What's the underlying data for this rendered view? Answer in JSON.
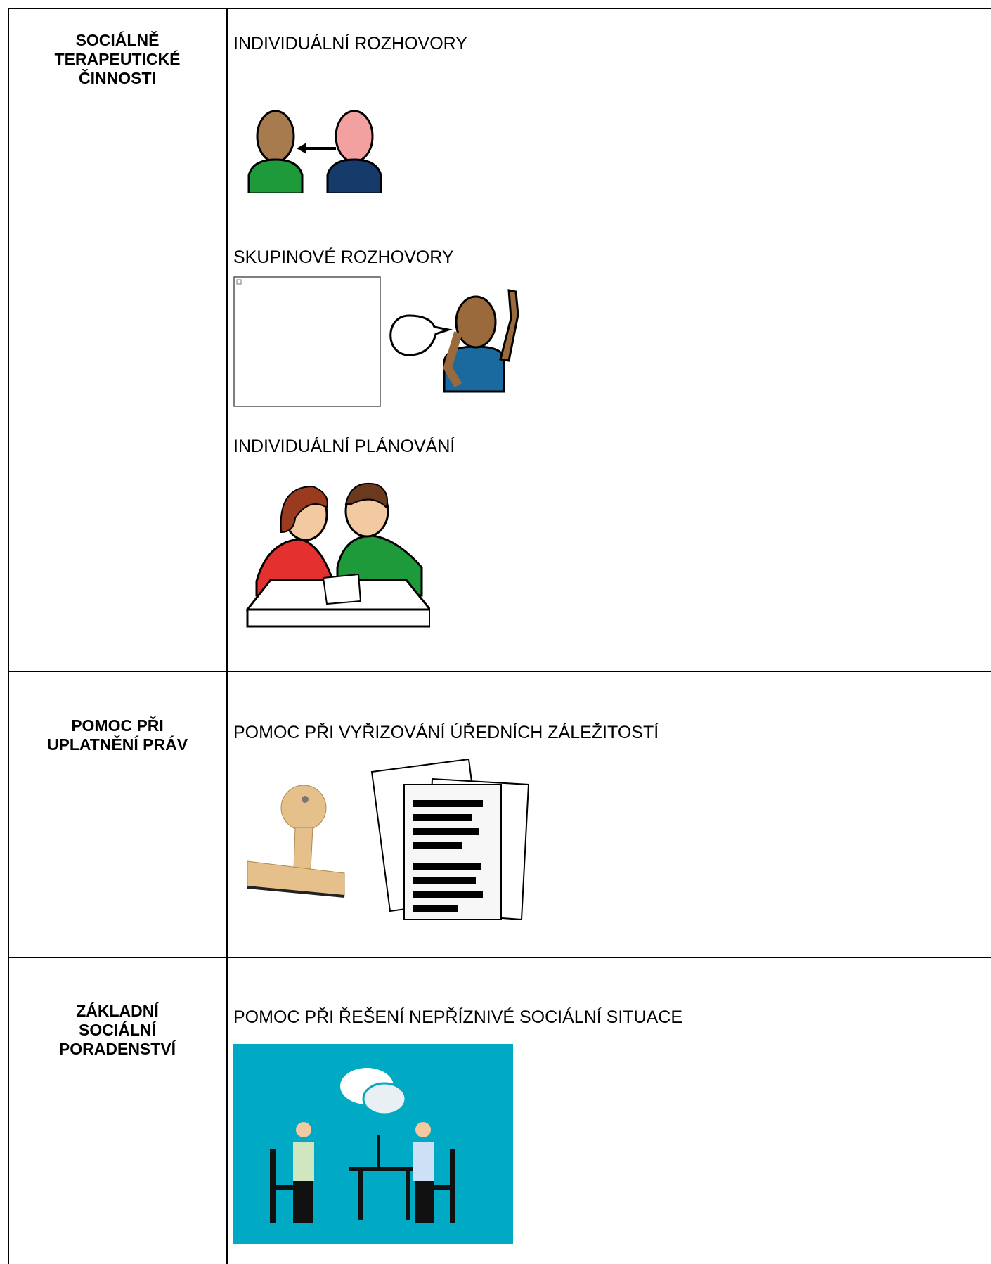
{
  "rows": [
    {
      "heading": [
        "SOCIÁLNĚ",
        "TERAPEUTICKÉ",
        "ČINNOSTI"
      ],
      "items": [
        {
          "label": "INDIVIDUÁLNÍ ROZHOVORY"
        },
        {
          "label": "SKUPINOVÉ ROZHOVORY"
        },
        {
          "label": "INDIVIDUÁLNÍ PLÁNOVÁNÍ"
        }
      ]
    },
    {
      "heading": [
        "POMOC PŘI",
        "UPLATNĚNÍ PRÁV"
      ],
      "items": [
        {
          "label": "POMOC PŘI VYŘIZOVÁNÍ ÚŘEDNÍCH ZÁLEŽITOSTÍ"
        }
      ]
    },
    {
      "heading": [
        "ZÁKLADNÍ",
        "SOCIÁLNÍ",
        "PORADENSTVÍ"
      ],
      "items": [
        {
          "label": "POMOC PŘI ŘEŠENÍ NEPŘÍZNIVÉ SOCIÁLNÍ SITUACE"
        }
      ]
    }
  ]
}
